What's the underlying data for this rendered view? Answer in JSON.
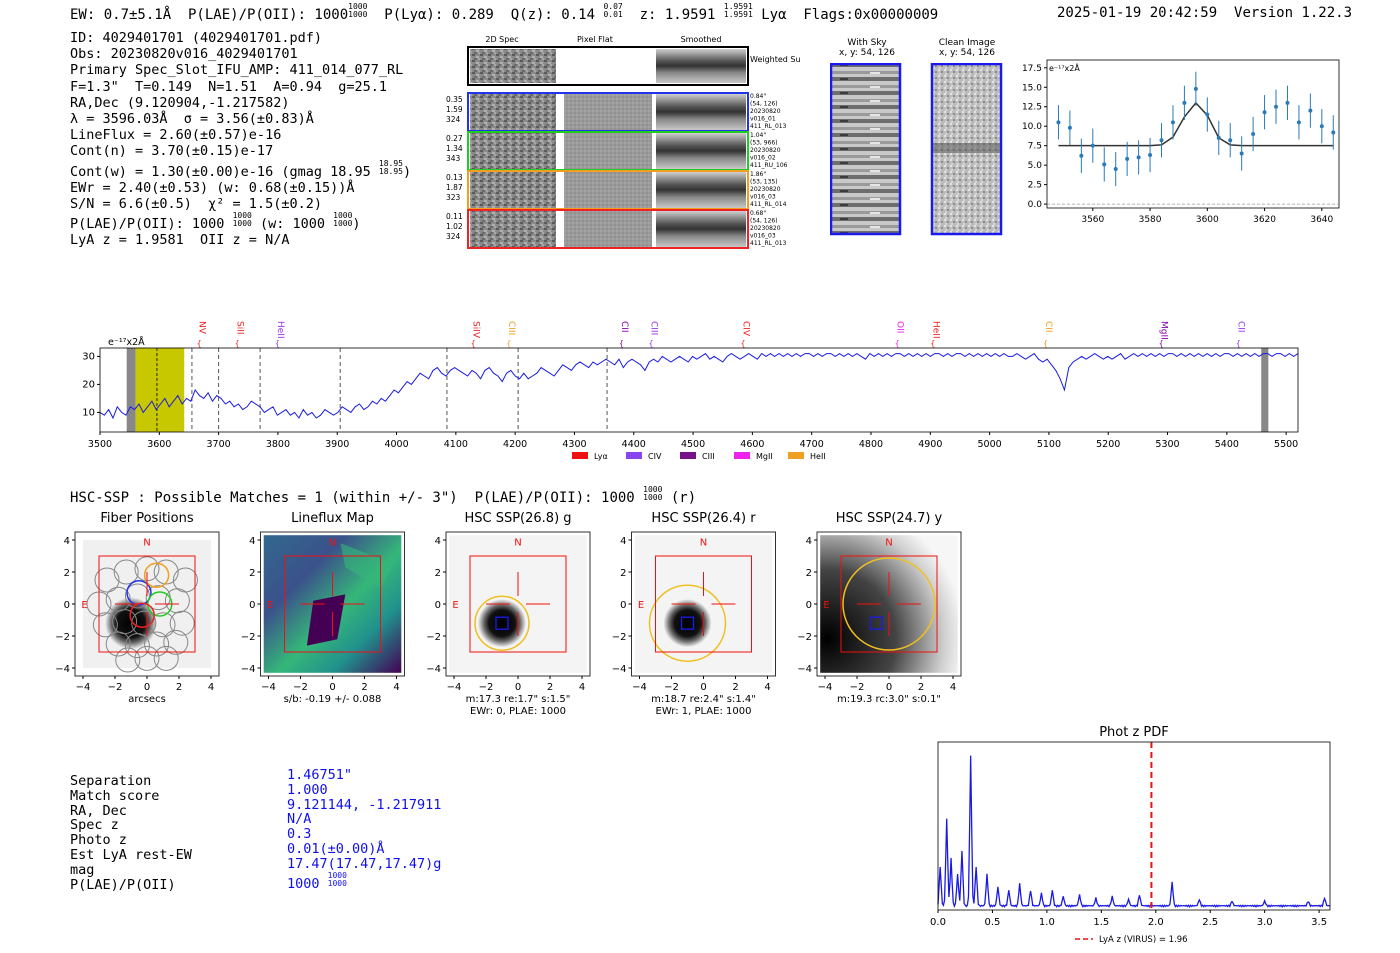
{
  "header": {
    "left": "EW: 0.7±5.1Å  P(LAE)/P(OII): 1000",
    "plae_sup": "1000",
    "plae_sub": "1000",
    "lya_label": "P(Lyα): 0.289",
    "qz_label": "Q(z): 0.14",
    "qz_sup": "0.07",
    "qz_sub": "0.01",
    "z_label": "z: 1.9591",
    "z_sup": "1.9591",
    "z_sub": "1.9591",
    "z_line": "Lyα",
    "flags": "Flags:0x00000009",
    "datetime": "2025-01-19 20:42:59",
    "version": "Version 1.22.3"
  },
  "info": {
    "id": "ID: 4029401701 (4029401701.pdf)",
    "obs": "Obs: 20230820v016_4029401701",
    "primary": "Primary Spec_Slot_IFU_AMP: 411_014_077_RL",
    "params": "F=1.3\"  T=0.149  N=1.51  A=0.94  g=25.1",
    "radec": "RA,Dec (9.120904,-1.217582)",
    "lambda": "λ = 3596.03Å  σ = 3.56(±0.83)Å",
    "lineflux": "LineFlux = 2.60(±0.57)e-16",
    "contn": "Cont(n) = 3.70(±0.15)e-17",
    "contw": "Cont(w) = 1.30(±0.00)e-16 (gmag 18.95",
    "contw_sup": "18.95",
    "contw_sub": "18.95",
    "contw_end": ")",
    "ewr": "EWr = 2.40(±0.53) (w: 0.68(±0.15))Å",
    "sn": "S/N = 6.6(±0.5)  χ² = 1.5(±0.2)",
    "plae": "P(LAE)/P(OII): 1000",
    "plae_sup": "1000",
    "plae_sub": "1000",
    "plae_w": "(w: 1000",
    "plae_w_sup": "1000",
    "plae_w_sub": "1000",
    "plae_w_end": ")",
    "lyaz": "LyA z = 1.9581  OII z = N/A"
  },
  "stamps": {
    "col_titles": [
      "2D Spec",
      "Pixel Flat",
      "Smoothed"
    ],
    "weighted": "Weighted Sum",
    "rows": [
      {
        "left": [
          "0.35",
          "1.59",
          "324"
        ],
        "right": [
          "0.84\"",
          "(54, 126)",
          "20230820",
          "v016_01",
          "411_RL_013"
        ],
        "color": "#2233ee"
      },
      {
        "left": [
          "0.27",
          "1.34",
          "343"
        ],
        "right": [
          "1.04\"",
          "(53, 966)",
          "20230820",
          "v016_02",
          "411_RU_106"
        ],
        "color": "#22cc22"
      },
      {
        "left": [
          "0.13",
          "1.87",
          "323"
        ],
        "right": [
          "1.86\"",
          "(53, 135)",
          "20230820",
          "v016_03",
          "411_RL_014"
        ],
        "color": "#f0a020"
      },
      {
        "left": [
          "0.11",
          "1.02",
          "324"
        ],
        "right": [
          "0.68\"",
          "(54, 126)",
          "20230820",
          "v016_03",
          "411_RL_013"
        ],
        "color": "#ee2222"
      }
    ]
  },
  "sky": {
    "with_sky": "With Sky",
    "with_sky_xy": "x, y: 54, 126",
    "clean": "Clean Image",
    "clean_xy": "x, y: 54, 126"
  },
  "fit_chart": {
    "type": "scatter",
    "unit": "e⁻¹⁷x2Å",
    "x": [
      3548,
      3552,
      3556,
      3560,
      3564,
      3568,
      3572,
      3576,
      3580,
      3584,
      3588,
      3592,
      3596,
      3600,
      3604,
      3608,
      3612,
      3616,
      3620,
      3624,
      3628,
      3632,
      3636,
      3640,
      3644
    ],
    "values": [
      10.5,
      9.8,
      6.2,
      7.5,
      5.1,
      4.5,
      5.8,
      6.0,
      6.3,
      8.2,
      10.5,
      13.0,
      14.8,
      11.5,
      8.5,
      8.2,
      6.5,
      9.0,
      11.8,
      12.5,
      13.0,
      10.5,
      12.0,
      10.0,
      9.2
    ],
    "fit": [
      7.5,
      7.5,
      7.5,
      7.5,
      7.5,
      7.5,
      7.5,
      7.5,
      7.5,
      7.6,
      8.6,
      11.2,
      13.0,
      11.4,
      8.5,
      7.6,
      7.5,
      7.5,
      7.5,
      7.5,
      7.5,
      7.5,
      7.5,
      7.5,
      7.5
    ],
    "xticks": [
      3560,
      3580,
      3600,
      3620,
      3640
    ],
    "yticks": [
      "0.0",
      "2.5",
      "5.0",
      "7.5",
      "10.0",
      "12.5",
      "15.0",
      "17.5"
    ],
    "xlim": [
      3544,
      3646
    ],
    "ylim": [
      -0.5,
      18.5
    ]
  },
  "spectrum": {
    "unit": "e⁻¹⁷x2Å",
    "xticks": [
      3500,
      3600,
      3700,
      3800,
      3900,
      4000,
      4100,
      4200,
      4300,
      4400,
      4500,
      4600,
      4700,
      4800,
      4900,
      5000,
      5100,
      5200,
      5300,
      5400,
      5500
    ],
    "yticks": [
      10,
      20,
      30
    ],
    "xlim": [
      3500,
      5520
    ],
    "ylim": [
      3,
      33
    ],
    "lines": [
      {
        "label": "NV",
        "x": 3668,
        "color": "#ee2222"
      },
      {
        "label": "SiII",
        "x": 3732,
        "color": "#ee2222"
      },
      {
        "label": "HeII",
        "x": 3800,
        "color": "#9933ee"
      },
      {
        "label": "SiIV",
        "x": 4130,
        "color": "#ee2222"
      },
      {
        "label": "CIII",
        "x": 4190,
        "color": "#f0a020"
      },
      {
        "label": "CII",
        "x": 4380,
        "color": "#8800aa"
      },
      {
        "label": "CIII",
        "x": 4430,
        "color": "#9933ee"
      },
      {
        "label": "CIV",
        "x": 4585,
        "color": "#ee2222"
      },
      {
        "label": "OII",
        "x": 4845,
        "color": "#ee22ee"
      },
      {
        "label": "HeII",
        "x": 4905,
        "color": "#ee2222"
      },
      {
        "label": "CII",
        "x": 5095,
        "color": "#f0a020"
      },
      {
        "label": "MgII",
        "x": 5290,
        "color": "#8800aa"
      },
      {
        "label": "CII",
        "x": 5420,
        "color": "#9933ee"
      }
    ],
    "dashed": [
      3655,
      3700,
      3770,
      3905,
      4085,
      4205,
      4355
    ],
    "legend": [
      {
        "label": "Lyα",
        "color": "#ee1111"
      },
      {
        "label": "CIV",
        "color": "#8844ee"
      },
      {
        "label": "CIII",
        "color": "#771188"
      },
      {
        "label": "MgII",
        "color": "#ee22ee"
      },
      {
        "label": "HeII",
        "color": "#f0a020"
      }
    ],
    "samples": [
      10,
      9,
      11,
      8,
      12,
      10,
      9,
      12,
      11,
      13,
      10,
      12,
      14,
      11,
      13,
      15,
      12,
      14,
      16,
      13,
      15,
      14,
      18,
      16,
      15,
      17,
      14,
      16,
      15,
      13,
      14,
      12,
      13,
      11,
      12,
      14,
      13,
      12,
      10,
      11,
      12,
      9,
      10,
      11,
      9,
      10,
      8,
      11,
      9,
      10,
      8,
      9,
      11,
      10,
      9,
      10,
      12,
      11,
      10,
      12,
      13,
      11,
      12,
      14,
      13,
      15,
      14,
      16,
      18,
      17,
      19,
      21,
      20,
      22,
      24,
      23,
      22,
      25,
      26,
      24,
      23,
      25,
      26,
      25,
      24,
      23,
      25,
      24,
      22,
      25,
      26,
      24,
      23,
      21,
      24,
      25,
      23,
      22,
      24,
      22,
      23,
      24,
      26,
      25,
      24,
      23,
      25,
      27,
      26,
      25,
      27,
      28,
      27,
      26,
      28,
      27,
      28,
      29,
      28,
      27,
      29,
      26,
      28,
      29,
      28,
      27,
      25,
      28,
      29,
      28,
      30,
      29,
      28,
      29,
      30,
      29,
      28,
      30,
      29,
      30,
      31,
      29,
      30,
      29,
      28,
      30,
      31,
      30,
      29,
      30,
      31,
      30,
      29,
      31,
      30,
      31,
      30,
      31,
      30,
      31,
      30,
      31,
      30,
      31,
      31,
      30,
      31,
      30,
      31,
      31,
      30,
      31,
      30,
      31,
      30,
      31,
      30,
      29,
      31,
      30,
      31,
      30,
      31,
      30,
      31,
      31,
      30,
      31,
      30,
      31,
      30,
      31,
      30,
      31,
      31,
      30,
      31,
      30,
      31,
      31,
      30,
      31,
      30,
      31,
      30,
      31,
      30,
      31,
      30,
      31,
      30,
      30,
      31,
      30,
      29,
      30,
      31,
      29,
      28,
      29,
      27,
      25,
      22,
      18,
      26,
      28,
      29,
      30,
      29,
      30,
      31,
      30,
      29,
      30,
      29,
      30,
      31,
      29,
      30,
      31,
      30,
      31,
      30,
      31,
      30,
      31,
      30,
      31,
      31,
      30,
      31,
      30,
      31,
      30,
      31,
      30,
      31,
      30,
      31,
      30,
      31,
      31,
      30,
      31,
      30,
      31,
      30,
      31,
      30,
      31,
      31,
      30,
      31,
      31,
      30,
      31,
      30,
      31
    ]
  },
  "hsc": {
    "title": "HSC-SSP : Possible Matches = 1 (within +/- 3\")  P(LAE)/P(OII): 1000",
    "sup": "1000",
    "sub": "1000",
    "suffix": "(r)",
    "panels": [
      {
        "title": "Fiber Positions",
        "caption1": "arcsecs",
        "caption2": ""
      },
      {
        "title": "Lineflux Map",
        "caption1": "s/b: -0.19 +/- 0.088",
        "caption2": ""
      },
      {
        "title": "HSC SSP(26.8) g",
        "caption1": "m:17.3  re:1.7\"  s:1.5\"",
        "caption2": "EWr: 0, PLAE: 1000"
      },
      {
        "title": "HSC SSP(26.4) r",
        "caption1": "m:18.7  re:2.4\"  s:1.4\"",
        "caption2": "EWr: 1, PLAE: 1000"
      },
      {
        "title": "HSC SSP(24.7) y",
        "caption1": "m:19.3 rc:3.0\"  s:0.1\"",
        "caption2": ""
      }
    ],
    "ticks": [
      "−4",
      "−2",
      "0",
      "2",
      "4"
    ],
    "n_label": "N",
    "e_label": "E"
  },
  "match": {
    "labels": [
      "Separation",
      "Match score",
      "RA, Dec",
      "Spec z",
      "Photo z",
      "Est LyA rest-EW",
      "mag",
      "P(LAE)/P(OII)"
    ],
    "values": [
      "1.46751\"",
      "1.000",
      "9.121144, -1.217911",
      "N/A",
      "0.3",
      "0.01(±0.00)Å",
      "17.47(17.47,17.47)g",
      "1000"
    ],
    "plae_sup": "1000",
    "plae_sub": "1000"
  },
  "photz": {
    "type": "line",
    "title": "Phot z PDF",
    "xticks": [
      "0.0",
      "0.5",
      "1.0",
      "1.5",
      "2.0",
      "2.5",
      "3.0",
      "3.5"
    ],
    "xlim": [
      0,
      3.6
    ],
    "marker": 1.96,
    "legend": "LyA z (VIRUS) = 1.96",
    "peaks": [
      [
        0.02,
        0.25
      ],
      [
        0.08,
        0.55
      ],
      [
        0.12,
        0.3
      ],
      [
        0.18,
        0.2
      ],
      [
        0.22,
        0.35
      ],
      [
        0.3,
        0.95
      ],
      [
        0.35,
        0.25
      ],
      [
        0.45,
        0.2
      ],
      [
        0.55,
        0.12
      ],
      [
        0.65,
        0.1
      ],
      [
        0.75,
        0.14
      ],
      [
        0.85,
        0.1
      ],
      [
        0.95,
        0.08
      ],
      [
        1.05,
        0.1
      ],
      [
        1.15,
        0.06
      ],
      [
        1.3,
        0.07
      ],
      [
        1.45,
        0.05
      ],
      [
        1.6,
        0.06
      ],
      [
        1.75,
        0.04
      ],
      [
        1.85,
        0.07
      ],
      [
        2.15,
        0.15
      ],
      [
        2.4,
        0.04
      ],
      [
        2.7,
        0.03
      ],
      [
        3.0,
        0.03
      ],
      [
        3.4,
        0.03
      ],
      [
        3.55,
        0.05
      ]
    ]
  },
  "colors": {
    "blue": "#1010ee",
    "red": "#ee1111",
    "gold": "#f0c020",
    "olive": "#c8c800"
  }
}
